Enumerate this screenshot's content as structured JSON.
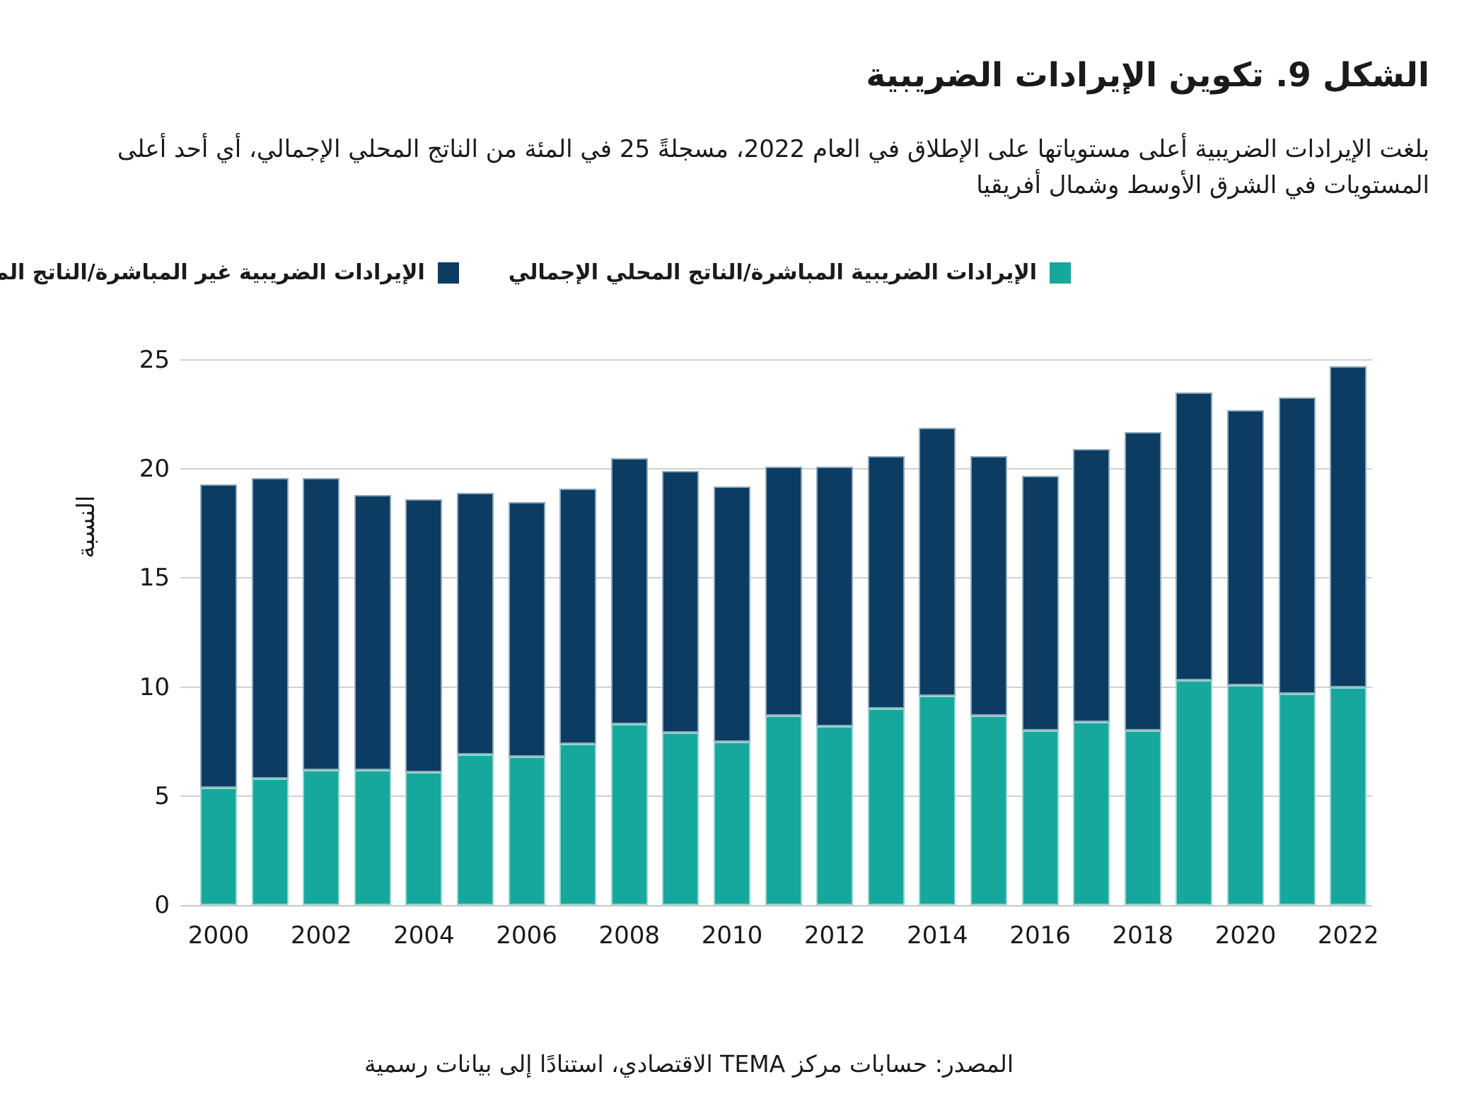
{
  "page": {
    "title": "الشكل 9. تكوين الإيرادات الضريبية",
    "subtitle": "بلغت الإيرادات الضريبية أعلى مستوياتها على الإطلاق في العام 2022، مسجلةً 25 في المئة من الناتج المحلي الإجمالي، أي أحد أعلى المستويات في الشرق الأوسط وشمال أفريقيا",
    "source": "المصدر: حسابات مركز TEMA الاقتصادي، استنادًا إلى بيانات رسمية"
  },
  "colors": {
    "direct": "#16a89c",
    "indirect": "#0c3c61",
    "gridline": "#cdd1d4",
    "text": "#1a1a1a"
  },
  "legend": {
    "items": [
      {
        "id": "direct",
        "label": "الإيرادات الضريبية المباشرة/الناتج المحلي الإجمالي",
        "color": "#16a89c"
      },
      {
        "id": "indirect",
        "label": "الإيرادات الضريبية غير المباشرة/الناتج المحلي الإجمالي",
        "color": "#0c3c61"
      }
    ]
  },
  "chart_data": {
    "type": "bar",
    "stacked": true,
    "title": "الشكل 9. تكوين الإيرادات الضريبية",
    "categories": [
      2000,
      2001,
      2002,
      2003,
      2004,
      2005,
      2006,
      2007,
      2008,
      2009,
      2010,
      2011,
      2012,
      2013,
      2014,
      2015,
      2016,
      2017,
      2018,
      2019,
      2020,
      2021,
      2022
    ],
    "series": [
      {
        "id": "direct",
        "name": "الإيرادات الضريبية المباشرة/الناتج المحلي الإجمالي",
        "color": "#16a89c",
        "values": [
          5.4,
          5.8,
          6.2,
          6.2,
          6.1,
          6.9,
          6.8,
          7.4,
          8.3,
          7.9,
          7.5,
          8.7,
          8.2,
          9.0,
          9.6,
          8.7,
          8.0,
          8.4,
          8.0,
          10.3,
          10.1,
          9.7,
          10.0
        ]
      },
      {
        "id": "indirect",
        "name": "الإيرادات الضريبية غير المباشرة/الناتج المحلي الإجمالي",
        "color": "#0c3c61",
        "values": [
          13.9,
          13.8,
          13.4,
          12.6,
          12.5,
          12.0,
          11.7,
          11.7,
          12.2,
          12.0,
          11.7,
          11.4,
          11.9,
          11.6,
          12.3,
          11.9,
          11.7,
          12.5,
          13.7,
          13.2,
          12.6,
          13.6,
          14.7
        ]
      }
    ],
    "totals": [
      19.3,
      19.6,
      19.6,
      18.8,
      18.6,
      18.9,
      18.5,
      19.1,
      20.5,
      19.9,
      19.2,
      20.1,
      20.1,
      20.6,
      21.9,
      20.6,
      19.7,
      20.9,
      21.7,
      23.5,
      22.7,
      23.3,
      24.7
    ],
    "ylabel": "النسبة",
    "ylim": [
      0,
      25
    ],
    "yticks": [
      0,
      5,
      10,
      15,
      20,
      25
    ],
    "xtick_labels": [
      "2000",
      "2002",
      "2004",
      "2006",
      "2008",
      "2010",
      "2012",
      "2014",
      "2016",
      "2018",
      "2020",
      "2022"
    ],
    "grid": "horizontal",
    "legend_position": "top"
  }
}
